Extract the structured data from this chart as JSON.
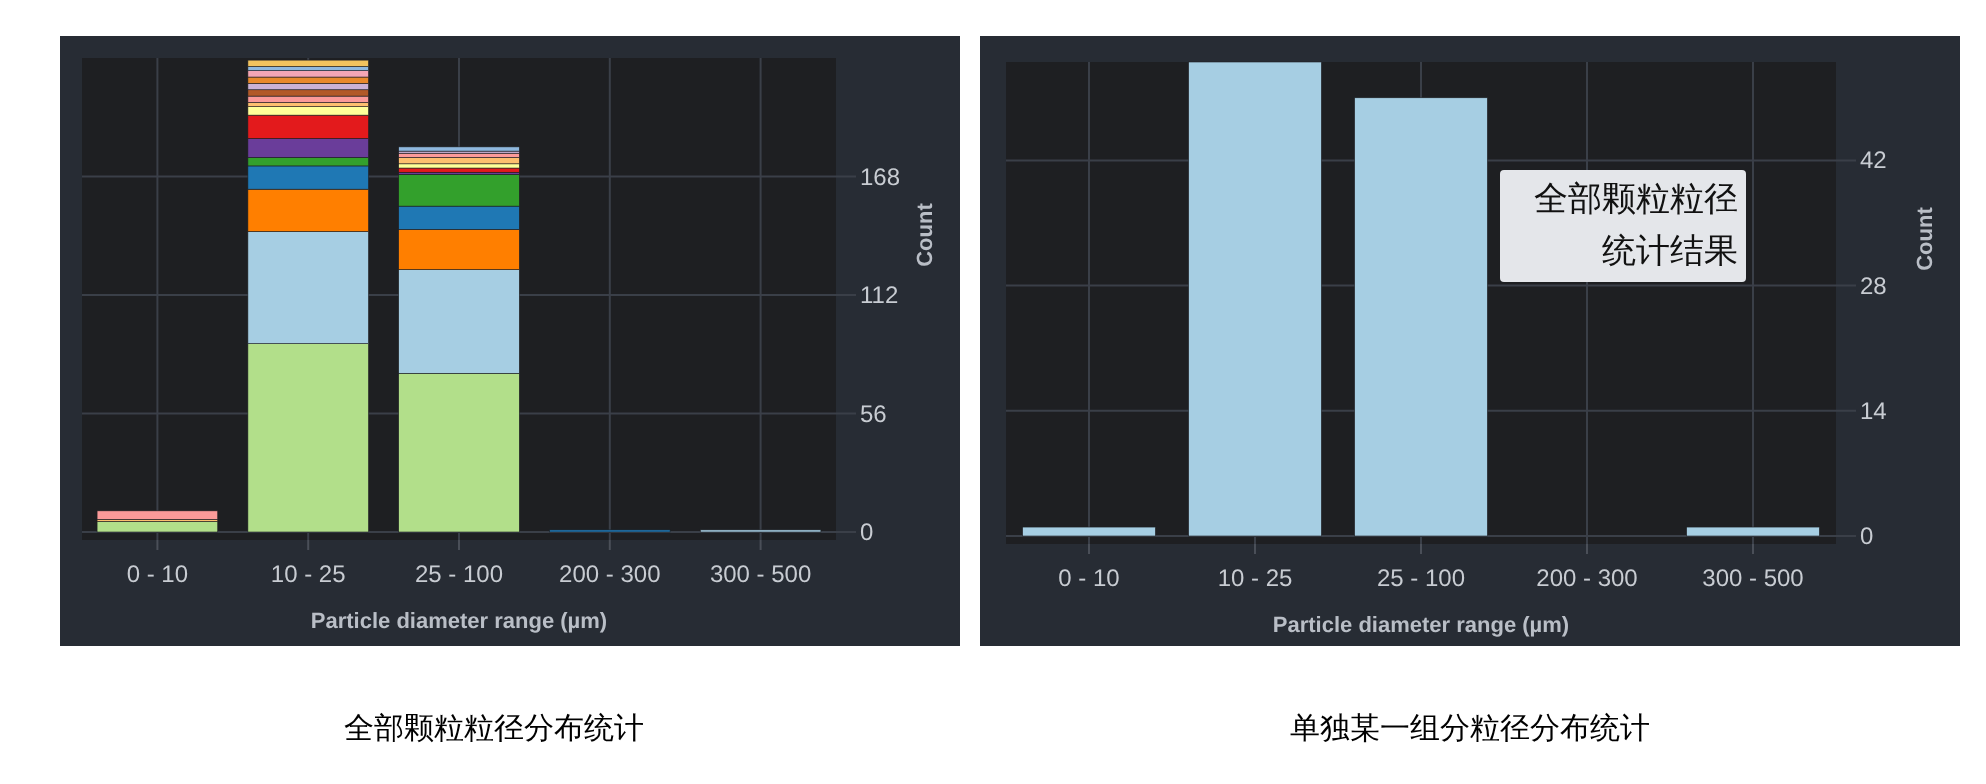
{
  "chart_data": [
    {
      "type": "bar",
      "stacked": true,
      "categories": [
        "0 - 10",
        "10 - 25",
        "25 - 100",
        "200 - 300",
        "300 - 500"
      ],
      "xlabel": "Particle diameter range (µm)",
      "ylabel": "Count",
      "ylim": [
        0,
        224
      ],
      "yticks": [
        0,
        56,
        112,
        168
      ],
      "grid": true,
      "series": [
        {
          "color": "#b2df8a",
          "values": [
            5,
            89,
            75,
            0,
            0
          ]
        },
        {
          "color": "#a6cee3",
          "values": [
            0,
            53,
            49,
            0,
            1
          ]
        },
        {
          "color": "#ff7f00",
          "values": [
            0,
            20,
            19,
            0,
            0
          ]
        },
        {
          "color": "#1f78b4",
          "values": [
            0,
            11,
            11,
            1,
            0
          ]
        },
        {
          "color": "#33a02c",
          "values": [
            0,
            4,
            15,
            0,
            0
          ]
        },
        {
          "color": "#6a3d9a",
          "values": [
            0,
            9,
            1,
            0,
            0
          ]
        },
        {
          "color": "#e31a1c",
          "values": [
            0,
            11,
            2,
            0,
            0
          ]
        },
        {
          "color": "#ffff99",
          "values": [
            0,
            4,
            2,
            0,
            0
          ]
        },
        {
          "color": "#fdbf6f",
          "values": [
            1,
            2,
            3,
            0,
            0
          ]
        },
        {
          "color": "#fb9a99",
          "values": [
            4,
            3,
            2,
            0,
            0
          ]
        },
        {
          "color": "#b15928",
          "values": [
            0,
            3,
            0,
            0,
            0
          ]
        },
        {
          "color": "#cab2d6",
          "values": [
            0,
            3,
            1,
            0,
            0
          ]
        },
        {
          "color": "#e8892c",
          "values": [
            0,
            3,
            0,
            0,
            0
          ]
        },
        {
          "color": "#f4a6b4",
          "values": [
            0,
            3,
            0,
            0,
            0
          ]
        },
        {
          "color": "#8fb8de",
          "values": [
            0,
            2,
            2,
            0,
            0
          ]
        },
        {
          "color": "#f2c35e",
          "values": [
            0,
            3,
            0,
            0,
            0
          ]
        }
      ],
      "annotations": [
        "全部颗粒粒径分布统计"
      ]
    },
    {
      "type": "bar",
      "categories": [
        "0 - 10",
        "10 - 25",
        "25 - 100",
        "200 - 300",
        "300 - 500"
      ],
      "xlabel": "Particle diameter range (µm)",
      "ylabel": "Count",
      "ylim": [
        0,
        53
      ],
      "yticks": [
        0,
        14,
        28,
        42
      ],
      "grid": true,
      "series": [
        {
          "color": "#a6cee3",
          "values": [
            1,
            53,
            49,
            0,
            1
          ]
        }
      ],
      "annotations": [
        "全部颗粒粒径统计结果",
        "单独某一组分粒径分布统计"
      ]
    }
  ]
}
